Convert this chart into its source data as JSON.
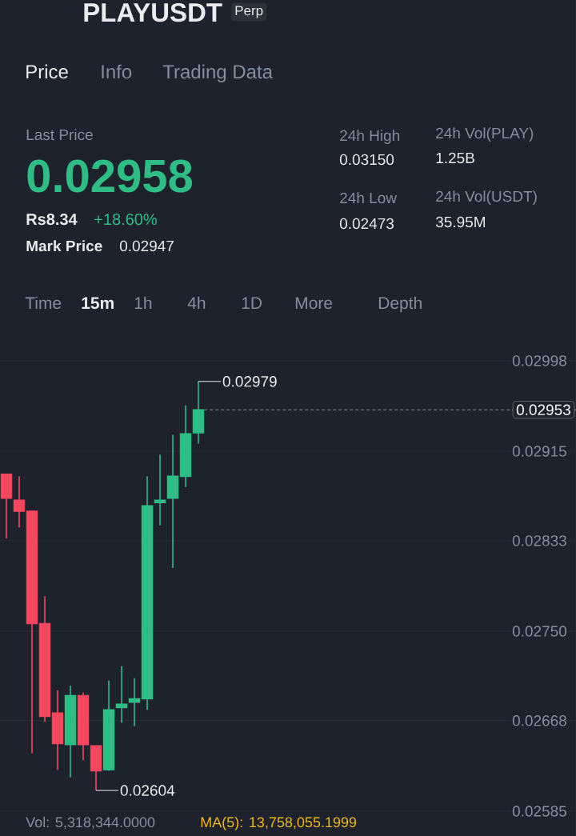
{
  "chart_data": {
    "type": "candlestick",
    "title": "PLAYUSDT",
    "subtitle": "Perp",
    "categories": [
      null,
      null,
      null,
      null,
      null,
      null,
      null,
      null,
      null,
      null,
      null,
      null,
      null,
      null,
      null,
      null,
      null,
      null,
      null,
      null,
      null,
      null,
      null,
      null,
      null,
      null,
      null,
      null,
      null,
      null,
      null,
      null,
      null,
      null,
      null,
      null,
      null,
      null,
      null,
      null,
      null,
      null,
      null,
      null,
      null
    ],
    "ohlc": [
      [
        0.02894,
        0.02894,
        0.02835,
        0.02872
      ],
      [
        0.0287,
        0.02892,
        0.02845,
        0.0286
      ],
      [
        0.0286,
        0.0286,
        0.02638,
        0.02757
      ],
      [
        0.02757,
        0.02782,
        0.02667,
        0.02672
      ],
      [
        0.02675,
        0.02696,
        0.02623,
        0.02647
      ],
      [
        0.02646,
        0.027,
        0.02616,
        0.02691
      ],
      [
        0.02691,
        0.02694,
        0.02632,
        0.02646
      ],
      [
        0.02645,
        0.02645,
        0.02604,
        0.02622
      ],
      [
        0.02623,
        0.02705,
        0.02622,
        0.02678
      ],
      [
        0.0268,
        0.02718,
        0.02666,
        0.02683
      ],
      [
        0.02685,
        0.02707,
        0.02663,
        0.02688
      ],
      [
        0.02688,
        0.02892,
        0.02678,
        0.02865
      ],
      [
        0.02868,
        0.02912,
        0.02847,
        0.0287
      ],
      [
        0.02872,
        0.0293,
        0.02808,
        0.02892
      ],
      [
        0.02892,
        0.02957,
        0.02882,
        0.02931
      ],
      [
        0.02932,
        0.02979,
        0.02922,
        0.02953
      ],
      null,
      null,
      null,
      null,
      null,
      null,
      null,
      null,
      null,
      null,
      null,
      null,
      null,
      null,
      null,
      null,
      null,
      null,
      null,
      null,
      null,
      null,
      null,
      null,
      null,
      null,
      null,
      null,
      null
    ],
    "colors": [
      "#f6465d",
      "#f6465d",
      "#f6465d",
      "#f6465d",
      "#f6465d",
      "#2ebd85",
      "#f6465d",
      "#f6465d",
      "#2ebd85",
      "#2ebd85",
      "#2ebd85",
      "#2ebd85",
      "#2ebd85",
      "#2ebd85",
      "#2ebd85",
      "#2ebd85",
      null,
      null,
      null,
      null,
      null,
      null,
      null,
      null,
      null,
      null,
      null,
      null,
      null,
      null,
      null,
      null,
      null,
      null,
      null,
      null,
      null,
      null,
      null,
      null,
      null,
      null,
      null,
      null,
      null
    ],
    "ylim": [
      0.02585,
      0.03028
    ],
    "yticks": [
      0.02998,
      0.02915,
      0.02833,
      {
        "value": 0.0275,
        "label": "0.02750"
      },
      0.02668,
      0.02585
    ],
    "grid": "y",
    "tick_labels": "y",
    "ref_lines": [
      {
        "axis": "y",
        "value": 0.02953,
        "label": "0.02953",
        "line_style": "dashed",
        "color": "#848e9c"
      }
    ],
    "annotations": [
      "Price",
      "Info",
      "Trading Data",
      "Last Price",
      "0.02958",
      "Rs8.34",
      "+18.60%",
      "Mark Price",
      "0.02947",
      "24h High",
      "0.03150",
      "24h Low",
      "0.02473",
      "24h Vol(PLAY)",
      "1.25B",
      "24h Vol(USDT)",
      "35.95M",
      "Time",
      "15m",
      "1h",
      "4h",
      "1D",
      "More",
      "Depth",
      "Vol: 5,318,344.0000",
      "MA(5): 13,758,055.1999",
      "0.02979",
      "0.02604"
    ]
  }
}
